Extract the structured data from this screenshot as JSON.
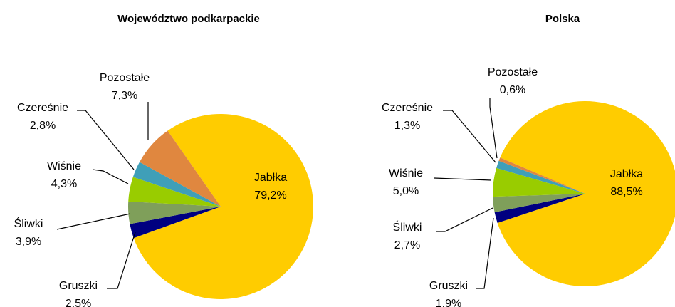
{
  "chart_data": [
    {
      "type": "pie",
      "title": "Województwo podkarpackie",
      "categories": [
        "Jabłka",
        "Gruszki",
        "Śliwki",
        "Wiśnie",
        "Czereśnie",
        "Pozostałe"
      ],
      "values": [
        79.2,
        2.5,
        3.9,
        4.3,
        2.8,
        7.3
      ],
      "value_labels": [
        "79,2%",
        "2,5%",
        "3,9%",
        "4,3%",
        "2,8%",
        "7,3%"
      ],
      "colors": [
        "#ffcc00",
        "#000080",
        "#7f9f5a",
        "#99cc00",
        "#3f9fb8",
        "#e0873f"
      ],
      "startangle": 325
    },
    {
      "type": "pie",
      "title": "Polska",
      "categories": [
        "Jabłka",
        "Gruszki",
        "Śliwki",
        "Wiśnie",
        "Czereśnie",
        "Pozostałe"
      ],
      "values": [
        88.5,
        1.9,
        2.7,
        5.0,
        1.3,
        0.6
      ],
      "value_labels": [
        "88,5%",
        "1,9%",
        "2,7%",
        "5,0%",
        "1,3%",
        "0,6%"
      ],
      "colors": [
        "#ffcc00",
        "#000080",
        "#7f9f5a",
        "#99cc00",
        "#3f9fb8",
        "#e0873f"
      ],
      "startangle": 293
    }
  ]
}
